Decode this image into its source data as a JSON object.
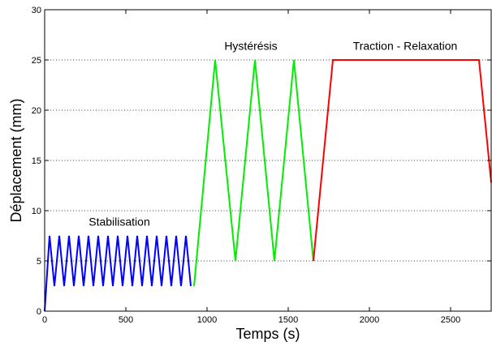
{
  "chart_data": {
    "type": "line",
    "xlabel": "Temps (s)",
    "ylabel": "Déplacement (mm)",
    "xlim": [
      0,
      2750
    ],
    "ylim": [
      0,
      30
    ],
    "xticks": [
      0,
      500,
      1000,
      1500,
      2000,
      2500
    ],
    "yticks": [
      0,
      5,
      10,
      15,
      20,
      25,
      30
    ],
    "grid": "y",
    "annotations": [
      {
        "text": "Stabilisation",
        "x": 460,
        "y": 8.5
      },
      {
        "text": "Hystérésis",
        "x": 1270,
        "y": 26
      },
      {
        "text": "Traction - Relaxation",
        "x": 2220,
        "y": 26
      }
    ],
    "series": [
      {
        "color": "#0000ff",
        "cycle": {
          "start": 0,
          "start_y": 0,
          "first_peak_x": 30,
          "period": 60,
          "max": 7.5,
          "min": 2.5,
          "end_x": 920
        }
      },
      {
        "color": "#00ee00",
        "x": [
          920,
          1050,
          1175,
          1295,
          1415,
          1535,
          1655
        ],
        "y": [
          2.5,
          25,
          5,
          25,
          5,
          25,
          5
        ]
      },
      {
        "color": "#ff0000",
        "x": [
          1655,
          1775,
          2675,
          2750
        ],
        "y": [
          5,
          25,
          25,
          12.8
        ]
      }
    ]
  }
}
